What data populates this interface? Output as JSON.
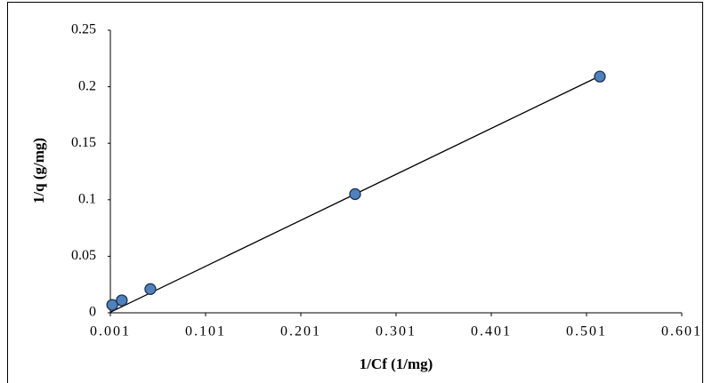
{
  "chart_data": {
    "type": "scatter",
    "x_label": "1/Cf (1/mg)",
    "y_label": "1/q (g/mg)",
    "x": [
      0.003,
      0.013,
      0.043,
      0.258,
      0.515
    ],
    "values": [
      0.007,
      0.011,
      0.021,
      0.105,
      0.209
    ],
    "color": "#4f81bd",
    "trendline": {
      "x": [
        0.001,
        0.515
      ],
      "values": [
        0.0005,
        0.2095
      ],
      "color": "#000000"
    },
    "xlim": [
      0.001,
      0.601
    ],
    "xticks": [
      0.001,
      0.101,
      0.201,
      0.301,
      0.401,
      0.501,
      0.601
    ],
    "ylim": [
      0,
      0.25
    ],
    "yticks": [
      0,
      0.05,
      0.1,
      0.15,
      0.2,
      0.25
    ],
    "grid": false
  }
}
